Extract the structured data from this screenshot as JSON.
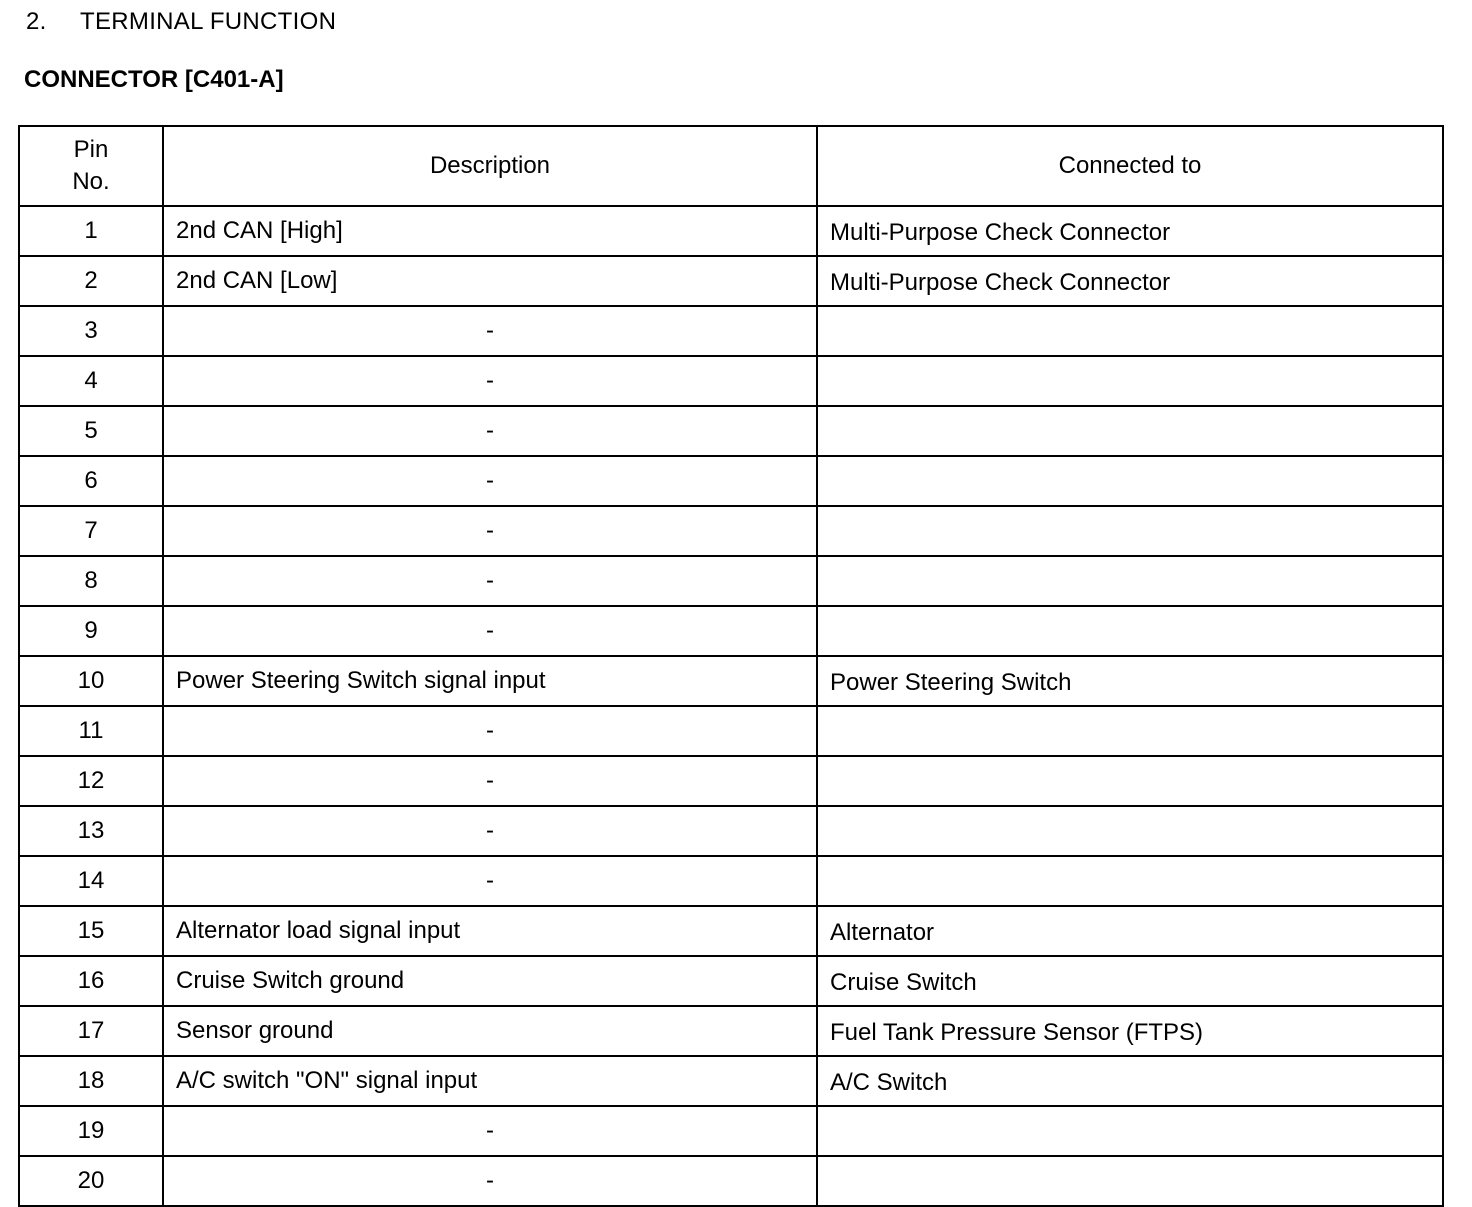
{
  "section": {
    "number": "2.",
    "title": "TERMINAL FUNCTION"
  },
  "connector_title": "CONNECTOR [C401-A]",
  "table": {
    "headers": {
      "pin": "Pin\nNo.",
      "description": "Description",
      "connected_to": "Connected to"
    },
    "rows": [
      {
        "pin": "1",
        "description": "2nd CAN [High]",
        "connected_to": "Multi-Purpose Check Connector"
      },
      {
        "pin": "2",
        "description": "2nd CAN [Low]",
        "connected_to": "Multi-Purpose Check Connector"
      },
      {
        "pin": "3",
        "description": "-",
        "connected_to": ""
      },
      {
        "pin": "4",
        "description": "-",
        "connected_to": ""
      },
      {
        "pin": "5",
        "description": "-",
        "connected_to": ""
      },
      {
        "pin": "6",
        "description": "-",
        "connected_to": ""
      },
      {
        "pin": "7",
        "description": "-",
        "connected_to": ""
      },
      {
        "pin": "8",
        "description": "-",
        "connected_to": ""
      },
      {
        "pin": "9",
        "description": "-",
        "connected_to": ""
      },
      {
        "pin": "10",
        "description": "Power Steering Switch signal input",
        "connected_to": "Power Steering Switch"
      },
      {
        "pin": "11",
        "description": "-",
        "connected_to": ""
      },
      {
        "pin": "12",
        "description": "-",
        "connected_to": ""
      },
      {
        "pin": "13",
        "description": "-",
        "connected_to": ""
      },
      {
        "pin": "14",
        "description": "-",
        "connected_to": ""
      },
      {
        "pin": "15",
        "description": "Alternator load signal input",
        "connected_to": "Alternator"
      },
      {
        "pin": "16",
        "description": "Cruise Switch ground",
        "connected_to": "Cruise Switch"
      },
      {
        "pin": "17",
        "description": "Sensor ground",
        "connected_to": "Fuel Tank Pressure Sensor (FTPS)"
      },
      {
        "pin": "18",
        "description": "A/C switch \"ON\" signal input",
        "connected_to": "A/C Switch"
      },
      {
        "pin": "19",
        "description": "-",
        "connected_to": ""
      },
      {
        "pin": "20",
        "description": "-",
        "connected_to": ""
      }
    ]
  }
}
